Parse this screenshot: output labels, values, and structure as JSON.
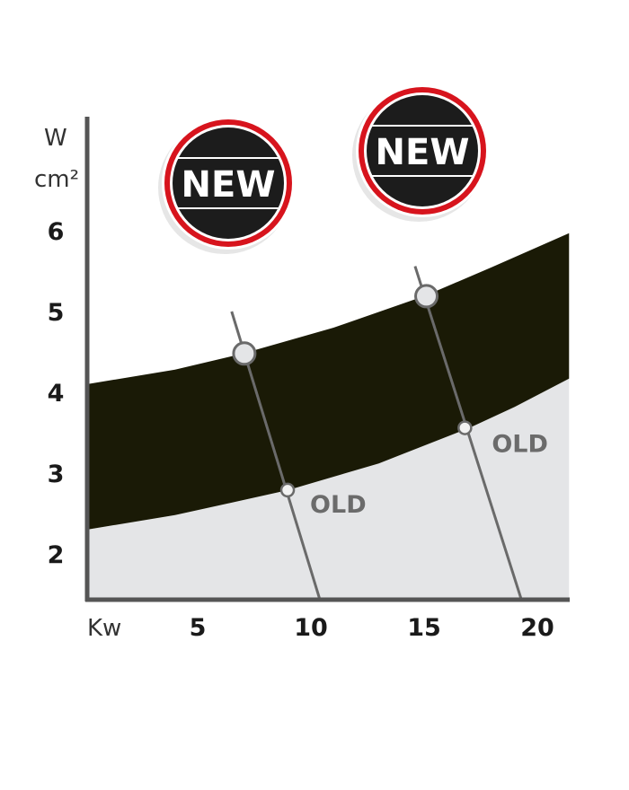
{
  "chart_data": {
    "type": "area",
    "xlabel": "Kw",
    "ylabel": [
      "W",
      "cm²"
    ],
    "xlim": [
      0.1,
      21.4
    ],
    "ylim": [
      1.43,
      7.4
    ],
    "x_ticks": [
      5,
      10,
      15,
      20
    ],
    "y_ticks": [
      6,
      5,
      4,
      3,
      2
    ],
    "grid": false,
    "band": {
      "upper": {
        "x": [
          0.1,
          4,
          7,
          11,
          15,
          18,
          21.4
        ],
        "y": [
          4.1,
          4.28,
          4.48,
          4.8,
          5.19,
          5.55,
          5.97
        ]
      },
      "lower": {
        "x": [
          0.1,
          4,
          9,
          13,
          17,
          19,
          21.4
        ],
        "y": [
          2.3,
          2.48,
          2.79,
          3.12,
          3.56,
          3.82,
          4.17
        ]
      },
      "color": "#1a1a06"
    },
    "below_fill_color": "#e4e5e7",
    "series": [
      {
        "label": "OLD",
        "line": {
          "x": [
            6.5,
            10.4
          ],
          "y": [
            5.0,
            1.43
          ]
        },
        "new_point": {
          "x": 7.06,
          "y": 4.48
        },
        "old_point": {
          "x": 8.97,
          "y": 2.79
        }
      },
      {
        "label": "OLD",
        "line": {
          "x": [
            14.6,
            19.3
          ],
          "y": [
            5.56,
            1.43
          ]
        },
        "new_point": {
          "x": 15.1,
          "y": 5.19
        },
        "old_point": {
          "x": 16.8,
          "y": 3.56
        }
      }
    ],
    "badges": [
      {
        "label": "NEW"
      },
      {
        "label": "NEW"
      }
    ],
    "badge_colors": {
      "ring": "#d7141d",
      "fill": "#1c1c1c"
    }
  }
}
